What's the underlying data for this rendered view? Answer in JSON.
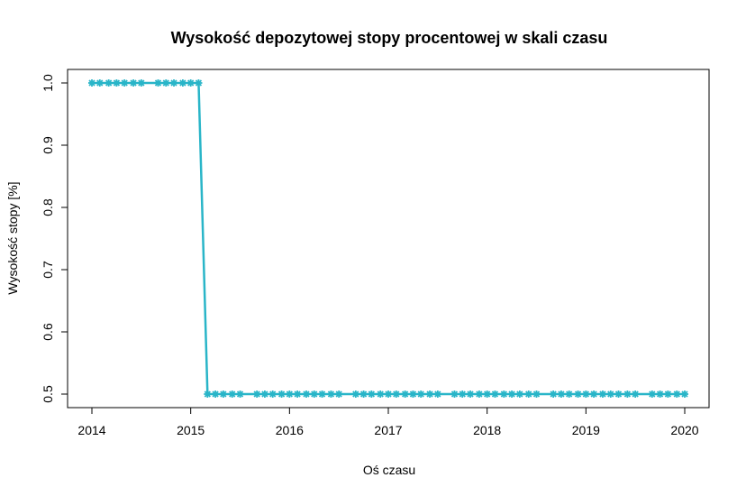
{
  "chart_data": {
    "type": "line",
    "title": "Wysokość depozytowej stopy procentowej w skali czasu",
    "xlabel": "Oś czasu",
    "ylabel": "Wysokość stopy [%]",
    "xlim": [
      2014.0,
      2020.25
    ],
    "ylim": [
      0.48,
      1.02
    ],
    "x_ticks": [
      2014,
      2015,
      2016,
      2017,
      2018,
      2019,
      2020
    ],
    "x_tick_labels": [
      "2014",
      "2015",
      "2016",
      "2017",
      "2018",
      "2019",
      "2020"
    ],
    "y_ticks": [
      0.5,
      0.6,
      0.7,
      0.8,
      0.9,
      1.0
    ],
    "y_tick_labels": [
      "0.5",
      "0.6",
      "0.7",
      "0.8",
      "0.9",
      "1.0"
    ],
    "grid": false,
    "series": [
      {
        "color": "#29B5C8",
        "x": [
          2014.0,
          2014.08,
          2014.17,
          2014.25,
          2014.33,
          2014.42,
          2014.5,
          2014.67,
          2014.75,
          2014.83,
          2014.92,
          2015.0,
          2015.08,
          2015.17,
          2015.25,
          2015.33,
          2015.42,
          2015.5,
          2015.67,
          2015.75,
          2015.83,
          2015.92,
          2016.0,
          2016.08,
          2016.17,
          2016.25,
          2016.33,
          2016.42,
          2016.5,
          2016.67,
          2016.75,
          2016.83,
          2016.92,
          2017.0,
          2017.08,
          2017.17,
          2017.25,
          2017.33,
          2017.42,
          2017.5,
          2017.67,
          2017.75,
          2017.83,
          2017.92,
          2018.0,
          2018.08,
          2018.17,
          2018.25,
          2018.33,
          2018.42,
          2018.5,
          2018.67,
          2018.75,
          2018.83,
          2018.92,
          2019.0,
          2019.08,
          2019.17,
          2019.25,
          2019.33,
          2019.42,
          2019.5,
          2019.67,
          2019.75,
          2019.83,
          2019.92,
          2020.0
        ],
        "y": [
          1.0,
          1.0,
          1.0,
          1.0,
          1.0,
          1.0,
          1.0,
          1.0,
          1.0,
          1.0,
          1.0,
          1.0,
          1.0,
          0.5,
          0.5,
          0.5,
          0.5,
          0.5,
          0.5,
          0.5,
          0.5,
          0.5,
          0.5,
          0.5,
          0.5,
          0.5,
          0.5,
          0.5,
          0.5,
          0.5,
          0.5,
          0.5,
          0.5,
          0.5,
          0.5,
          0.5,
          0.5,
          0.5,
          0.5,
          0.5,
          0.5,
          0.5,
          0.5,
          0.5,
          0.5,
          0.5,
          0.5,
          0.5,
          0.5,
          0.5,
          0.5,
          0.5,
          0.5,
          0.5,
          0.5,
          0.5,
          0.5,
          0.5,
          0.5,
          0.5,
          0.5,
          0.5,
          0.5,
          0.5,
          0.5,
          0.5,
          0.5
        ]
      }
    ]
  }
}
